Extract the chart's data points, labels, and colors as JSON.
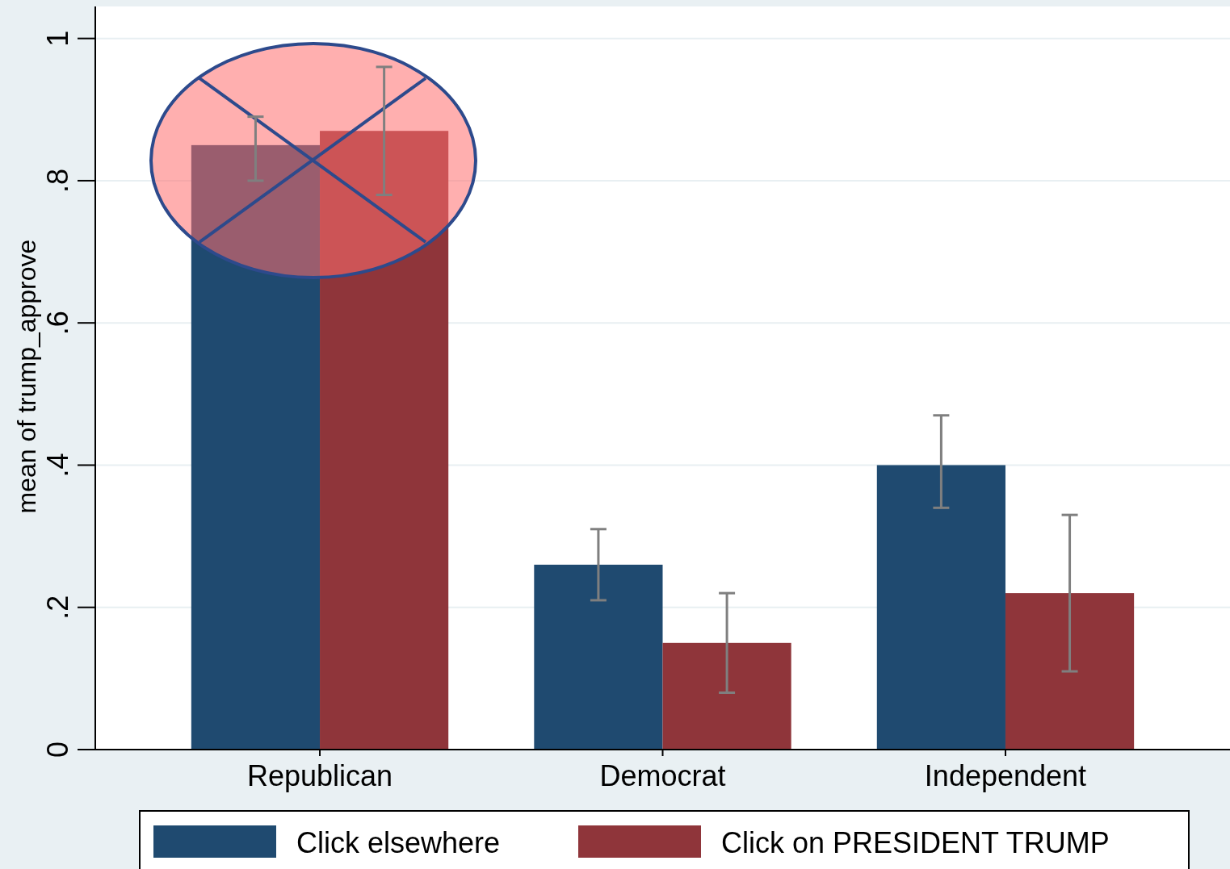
{
  "chart_data": {
    "type": "bar",
    "ylabel": "mean of trump_approve",
    "categories": [
      "Republican",
      "Democrat",
      "Independent"
    ],
    "series": [
      {
        "name": "Click elsewhere",
        "color": "#1f4a70",
        "values": [
          0.85,
          0.26,
          0.4
        ],
        "errors": [
          [
            0.8,
            0.89
          ],
          [
            0.21,
            0.31
          ],
          [
            0.34,
            0.47
          ]
        ]
      },
      {
        "name": "Click on PRESIDENT TRUMP",
        "color": "#8f353a",
        "values": [
          0.87,
          0.15,
          0.22
        ],
        "errors": [
          [
            0.78,
            0.96
          ],
          [
            0.08,
            0.22
          ],
          [
            0.11,
            0.33
          ]
        ]
      }
    ],
    "ylim": [
      0,
      1.045
    ],
    "yticks": [
      {
        "value": 0,
        "label": "0"
      },
      {
        "value": 0.2,
        "label": ".2"
      },
      {
        "value": 0.4,
        "label": ".4"
      },
      {
        "value": 0.6,
        "label": ".6"
      },
      {
        "value": 0.8,
        "label": ".8"
      },
      {
        "value": 1,
        "label": "1"
      }
    ],
    "grid": "y",
    "legend": "bottom"
  }
}
